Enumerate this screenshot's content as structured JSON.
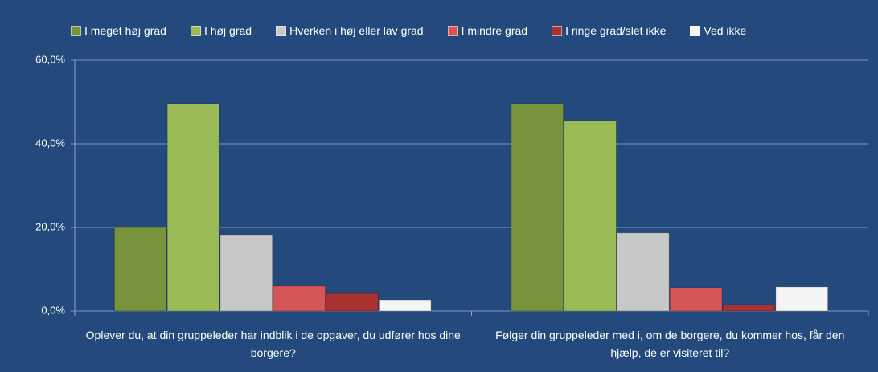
{
  "chart_data": {
    "type": "bar",
    "categories": [
      "Oplever du, at din gruppeleder har indblik i de opgaver, du udfører hos dine borgere?",
      "Følger din gruppeleder med i, om de borgere, du kommer hos, får den hjælp, de er visiteret til?"
    ],
    "series": [
      {
        "name": "I meget høj grad",
        "color": "#77933c",
        "values": [
          20.0,
          49.6
        ]
      },
      {
        "name": "I høj grad",
        "color": "#9bbb59",
        "values": [
          49.6,
          45.6
        ]
      },
      {
        "name": "Hverken i høj eller lav grad",
        "color": "#c8c8c8",
        "values": [
          18.1,
          18.7
        ]
      },
      {
        "name": "I mindre grad",
        "color": "#d65555",
        "values": [
          6.0,
          5.6
        ]
      },
      {
        "name": "I ringe grad/slet ikke",
        "color": "#a83232",
        "values": [
          4.2,
          1.5
        ]
      },
      {
        "name": "Ved ikke",
        "color": "#f4f4f4",
        "values": [
          2.5,
          5.8
        ]
      }
    ],
    "ylim": [
      0,
      60
    ],
    "yticks": [
      {
        "value": 0,
        "label": "0,0%"
      },
      {
        "value": 20,
        "label": "20,0%"
      },
      {
        "value": 40,
        "label": "40,0%"
      },
      {
        "value": 60,
        "label": "60,0%"
      }
    ],
    "grid": true
  }
}
